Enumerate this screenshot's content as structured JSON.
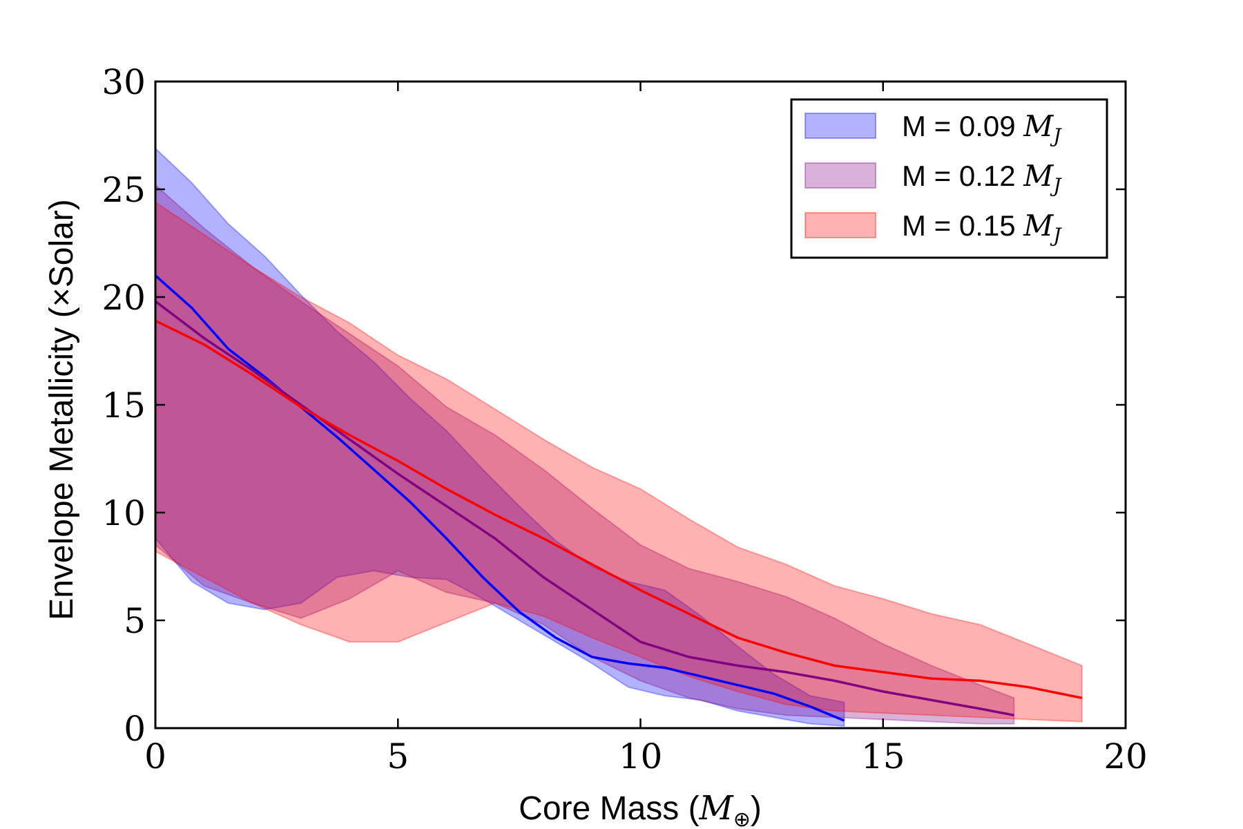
{
  "chart_data": {
    "type": "area",
    "xlabel": "Core Mass (M⊕)",
    "ylabel": "Envelope Metallicity (×Solar)",
    "xlim": [
      0,
      20
    ],
    "ylim": [
      0,
      30
    ],
    "xticks": [
      0,
      5,
      10,
      15,
      20
    ],
    "yticks": [
      0,
      5,
      10,
      15,
      20,
      25,
      30
    ],
    "xtick_labels": [
      "0",
      "5",
      "10",
      "15",
      "20"
    ],
    "ytick_labels": [
      "0",
      "5",
      "10",
      "15",
      "20",
      "25",
      "30"
    ],
    "grid": false,
    "legend_position": "top-right",
    "series": [
      {
        "name": "M = 0.09 MJ",
        "color": "#0000ff",
        "x": [
          0,
          0.75,
          1.5,
          2.25,
          3,
          3.75,
          4.5,
          5.25,
          6,
          6.75,
          7.5,
          8.25,
          9,
          9.75,
          10.5,
          11.25,
          12,
          12.75,
          13.5,
          14.2
        ],
        "median": [
          21.0,
          19.5,
          17.6,
          16.3,
          14.9,
          13.5,
          12.0,
          10.5,
          8.8,
          7.0,
          5.4,
          4.2,
          3.3,
          3.0,
          2.8,
          2.4,
          2.0,
          1.6,
          1.0,
          0.35
        ],
        "upper": [
          26.9,
          25.3,
          23.4,
          21.9,
          20.1,
          18.4,
          17.0,
          15.3,
          13.8,
          12.0,
          10.3,
          8.7,
          7.5,
          6.8,
          6.4,
          5.2,
          3.8,
          2.5,
          1.5,
          1.2
        ],
        "lower": [
          8.8,
          6.8,
          5.8,
          5.5,
          5.8,
          7.0,
          7.3,
          7.0,
          6.9,
          6.0,
          5.0,
          4.0,
          3.0,
          1.9,
          1.5,
          1.3,
          0.8,
          0.5,
          0.2,
          0.1
        ]
      },
      {
        "name": "M = 0.12 MJ",
        "color": "#800080",
        "x": [
          0,
          1,
          2,
          3,
          4,
          5,
          6,
          7,
          8,
          9,
          10,
          11,
          12,
          13,
          14,
          15,
          16,
          17,
          17.7
        ],
        "median": [
          19.8,
          18.1,
          16.6,
          15.0,
          13.4,
          11.8,
          10.3,
          8.8,
          7.0,
          5.5,
          4.0,
          3.3,
          2.9,
          2.6,
          2.2,
          1.7,
          1.3,
          0.9,
          0.6
        ],
        "upper": [
          25.2,
          23.2,
          21.4,
          19.8,
          18.3,
          16.8,
          14.9,
          13.6,
          12.0,
          10.2,
          8.5,
          7.4,
          6.8,
          6.1,
          5.1,
          3.9,
          2.9,
          2.0,
          1.4
        ],
        "lower": [
          8.5,
          6.6,
          5.8,
          5.1,
          6.0,
          7.3,
          6.3,
          5.8,
          4.8,
          3.3,
          2.2,
          1.4,
          0.9,
          0.6,
          0.5,
          0.4,
          0.3,
          0.2,
          0.2
        ]
      },
      {
        "name": "M = 0.15 MJ",
        "color": "#ff0000",
        "x": [
          0,
          1,
          2,
          3,
          4,
          5,
          6,
          7,
          8,
          9,
          10,
          11,
          12,
          13,
          14,
          15,
          16,
          17,
          18,
          19.1
        ],
        "median": [
          18.9,
          17.8,
          16.4,
          14.9,
          13.6,
          12.4,
          11.1,
          9.9,
          8.8,
          7.6,
          6.4,
          5.3,
          4.2,
          3.5,
          2.9,
          2.6,
          2.3,
          2.2,
          1.9,
          1.4
        ],
        "upper": [
          24.4,
          22.9,
          21.4,
          20.0,
          18.8,
          17.3,
          16.2,
          14.8,
          13.4,
          12.1,
          11.1,
          9.7,
          8.4,
          7.6,
          6.6,
          6.0,
          5.3,
          4.8,
          3.9,
          2.9
        ],
        "lower": [
          8.2,
          7.0,
          5.8,
          4.8,
          4.0,
          4.0,
          4.9,
          5.8,
          5.2,
          4.2,
          3.3,
          2.4,
          1.7,
          1.1,
          0.8,
          0.7,
          0.6,
          0.5,
          0.4,
          0.3
        ]
      }
    ]
  },
  "legend": {
    "entries": [
      {
        "prefix": "M = 0.09 ",
        "math": "M",
        "sub": "J",
        "color": "#0000ff"
      },
      {
        "prefix": "M = 0.12 ",
        "math": "M",
        "sub": "J",
        "color": "#800080"
      },
      {
        "prefix": "M = 0.15 ",
        "math": "M",
        "sub": "J",
        "color": "#ff0000"
      }
    ]
  },
  "axis_text": {
    "x_prefix": "Core Mass (",
    "x_math": "M",
    "x_sub": "⊕",
    "x_suffix": ")",
    "y_text": "Envelope Metallicity (×Solar)"
  }
}
